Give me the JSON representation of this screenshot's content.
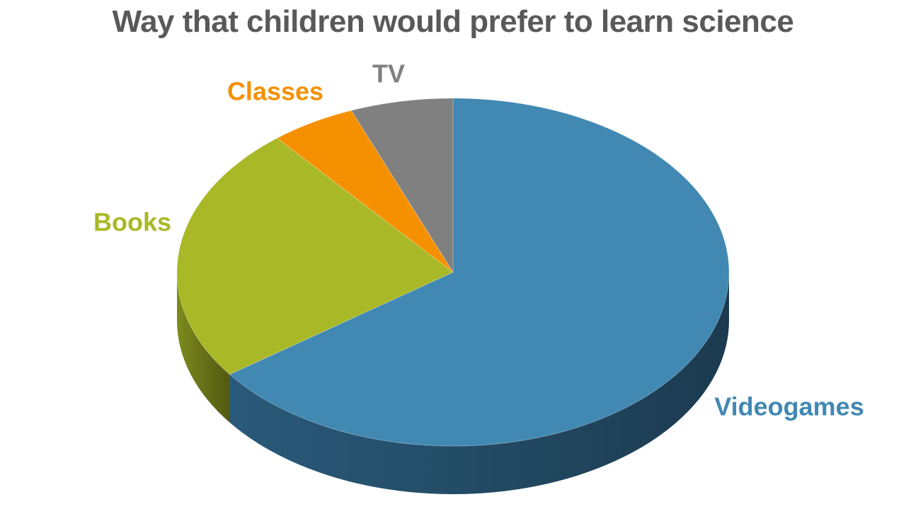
{
  "chart_data": {
    "type": "pie",
    "title": "Way that children would prefer to learn science",
    "categories": [
      "Videogames",
      "Books",
      "Classes",
      "TV"
    ],
    "values": [
      65,
      24,
      5,
      6
    ],
    "colors": [
      "#4188B3",
      "#A9B826",
      "#F59100",
      "#808080"
    ],
    "side_colors": [
      "#2A5A7A",
      "#7C8A1C",
      "#B86C00",
      "#5E5E5E"
    ],
    "start_angle_deg": 0,
    "direction": "clockwise",
    "style": "3d",
    "legend": "none",
    "labels_on_slices": true
  }
}
